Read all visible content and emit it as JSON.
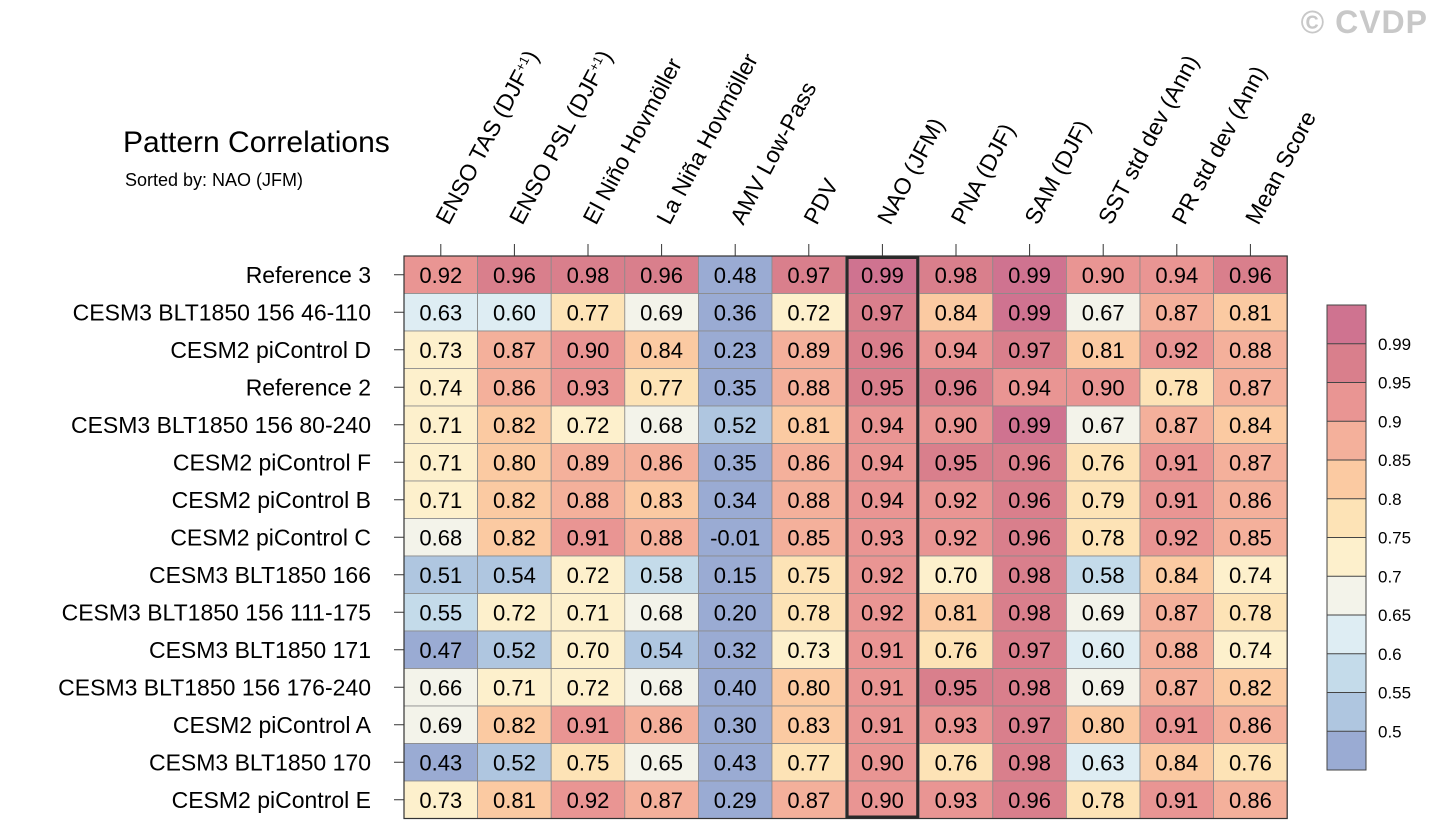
{
  "title": "Pattern Correlations",
  "subtitle": "Sorted by: NAO (JFM)",
  "watermark": "© CVDP",
  "chart_data": {
    "type": "heatmap",
    "title": "Pattern Correlations",
    "sorted_by": "NAO (JFM)",
    "highlight_column": "NAO (JFM)",
    "columns": [
      {
        "label": "ENSO TAS (DJF",
        "sup": "+1",
        "close": ")"
      },
      {
        "label": "ENSO PSL (DJF",
        "sup": "+1",
        "close": ")"
      },
      {
        "label": "El Niño Hovmöller",
        "sup": "",
        "close": ""
      },
      {
        "label": "La Niña Hovmöller",
        "sup": "",
        "close": ""
      },
      {
        "label": "AMV Low-Pass",
        "sup": "",
        "close": ""
      },
      {
        "label": "PDV",
        "sup": "",
        "close": ""
      },
      {
        "label": "NAO (JFM)",
        "sup": "",
        "close": ""
      },
      {
        "label": "PNA (DJF)",
        "sup": "",
        "close": ""
      },
      {
        "label": "SAM (DJF)",
        "sup": "",
        "close": ""
      },
      {
        "label": "SST std dev (Ann)",
        "sup": "",
        "close": ""
      },
      {
        "label": "PR std dev (Ann)",
        "sup": "",
        "close": ""
      },
      {
        "label": "Mean Score",
        "sup": "",
        "close": ""
      }
    ],
    "rows": [
      "Reference 3",
      "CESM3 BLT1850 156 46-110",
      "CESM2 piControl D",
      "Reference 2",
      "CESM3 BLT1850 156 80-240",
      "CESM2 piControl F",
      "CESM2 piControl B",
      "CESM2 piControl C",
      "CESM3 BLT1850 166",
      "CESM3 BLT1850 156 111-175",
      "CESM3 BLT1850 171",
      "CESM3 BLT1850 156 176-240",
      "CESM2 piControl A",
      "CESM3 BLT1850 170",
      "CESM2 piControl E"
    ],
    "values": [
      [
        "0.92",
        "0.96",
        "0.98",
        "0.96",
        "0.48",
        "0.97",
        "0.99",
        "0.98",
        "0.99",
        "0.90",
        "0.94",
        "0.96"
      ],
      [
        "0.63",
        "0.60",
        "0.77",
        "0.69",
        "0.36",
        "0.72",
        "0.97",
        "0.84",
        "0.99",
        "0.67",
        "0.87",
        "0.81"
      ],
      [
        "0.73",
        "0.87",
        "0.90",
        "0.84",
        "0.23",
        "0.89",
        "0.96",
        "0.94",
        "0.97",
        "0.81",
        "0.92",
        "0.88"
      ],
      [
        "0.74",
        "0.86",
        "0.93",
        "0.77",
        "0.35",
        "0.88",
        "0.95",
        "0.96",
        "0.94",
        "0.90",
        "0.78",
        "0.87"
      ],
      [
        "0.71",
        "0.82",
        "0.72",
        "0.68",
        "0.52",
        "0.81",
        "0.94",
        "0.90",
        "0.99",
        "0.67",
        "0.87",
        "0.84"
      ],
      [
        "0.71",
        "0.80",
        "0.89",
        "0.86",
        "0.35",
        "0.86",
        "0.94",
        "0.95",
        "0.96",
        "0.76",
        "0.91",
        "0.87"
      ],
      [
        "0.71",
        "0.82",
        "0.88",
        "0.83",
        "0.34",
        "0.88",
        "0.94",
        "0.92",
        "0.96",
        "0.79",
        "0.91",
        "0.86"
      ],
      [
        "0.68",
        "0.82",
        "0.91",
        "0.88",
        "-0.01",
        "0.85",
        "0.93",
        "0.92",
        "0.96",
        "0.78",
        "0.92",
        "0.85"
      ],
      [
        "0.51",
        "0.54",
        "0.72",
        "0.58",
        "0.15",
        "0.75",
        "0.92",
        "0.70",
        "0.98",
        "0.58",
        "0.84",
        "0.74"
      ],
      [
        "0.55",
        "0.72",
        "0.71",
        "0.68",
        "0.20",
        "0.78",
        "0.92",
        "0.81",
        "0.98",
        "0.69",
        "0.87",
        "0.78"
      ],
      [
        "0.47",
        "0.52",
        "0.70",
        "0.54",
        "0.32",
        "0.73",
        "0.91",
        "0.76",
        "0.97",
        "0.60",
        "0.88",
        "0.74"
      ],
      [
        "0.66",
        "0.71",
        "0.72",
        "0.68",
        "0.40",
        "0.80",
        "0.91",
        "0.95",
        "0.98",
        "0.69",
        "0.87",
        "0.82"
      ],
      [
        "0.69",
        "0.82",
        "0.91",
        "0.86",
        "0.30",
        "0.83",
        "0.91",
        "0.93",
        "0.97",
        "0.80",
        "0.91",
        "0.86"
      ],
      [
        "0.43",
        "0.52",
        "0.75",
        "0.65",
        "0.43",
        "0.77",
        "0.90",
        "0.76",
        "0.98",
        "0.63",
        "0.84",
        "0.76"
      ],
      [
        "0.73",
        "0.81",
        "0.92",
        "0.87",
        "0.29",
        "0.87",
        "0.90",
        "0.93",
        "0.96",
        "0.78",
        "0.91",
        "0.86"
      ]
    ],
    "colorbar": {
      "levels": [
        0.5,
        0.55,
        0.6,
        0.65,
        0.7,
        0.75,
        0.8,
        0.85,
        0.9,
        0.95,
        0.99
      ],
      "tick_labels": [
        "0.5",
        "0.55",
        "0.6",
        "0.65",
        "0.7",
        "0.75",
        "0.8",
        "0.85",
        "0.9",
        "0.95",
        "0.99"
      ],
      "colors": [
        "#9aabd3",
        "#afc6e0",
        "#c4dbea",
        "#deedf3",
        "#f3f3ea",
        "#fdf0cc",
        "#fde3b6",
        "#fbcaa2",
        "#f4b09b",
        "#e99593",
        "#d97f8c",
        "#cf7390"
      ]
    }
  }
}
